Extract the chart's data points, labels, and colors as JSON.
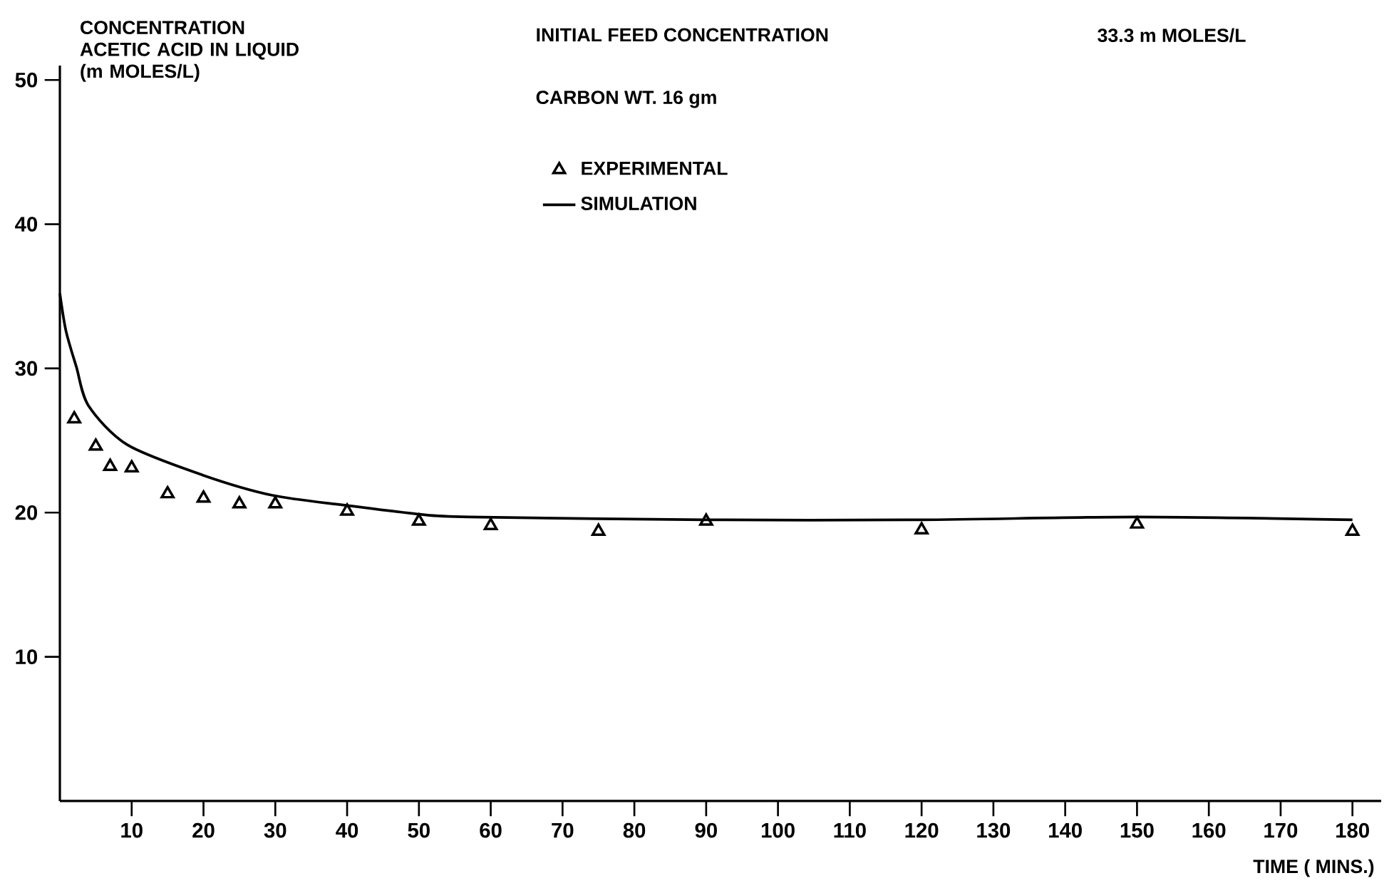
{
  "chart_data": {
    "type": "scatter",
    "xlabel": "TIME ( MINS.)",
    "ylabel": "CONCENTRATION ACETIC ACID IN LIQUID (m MOLES/L)",
    "annotations": [
      "INITIAL FEED CONCENTRATION",
      "33.3 m MOLES/L",
      "CARBON WT.  16 gm"
    ],
    "xlim": [
      0,
      184
    ],
    "ylim": [
      0,
      51
    ],
    "xticks": [
      10,
      20,
      30,
      40,
      50,
      60,
      70,
      80,
      90,
      100,
      110,
      120,
      130,
      140,
      150,
      160,
      170,
      180
    ],
    "yticks": [
      10,
      20,
      30,
      40,
      50
    ],
    "legend": "top",
    "series": [
      {
        "name": "EXPERIMENTAL",
        "marker": "triangle",
        "color": "#000000",
        "x": [
          2,
          5,
          7,
          10,
          15,
          20,
          25,
          30,
          40,
          50,
          60,
          75,
          90,
          120,
          150,
          180
        ],
        "values": [
          26.5,
          24.6,
          23.2,
          23.1,
          21.3,
          21.0,
          20.6,
          20.6,
          20.1,
          19.4,
          19.1,
          18.7,
          19.4,
          18.8,
          19.2,
          18.7
        ]
      },
      {
        "name": "SIMULATION",
        "type": "line",
        "marker": "none",
        "line_style": "solid",
        "color": "#000000",
        "x": [
          0,
          0.85,
          2.3,
          4,
          9.4,
          19.9,
          29.6,
          39.9,
          49.8,
          57,
          90,
          120,
          150,
          180
        ],
        "values": [
          35.2,
          32.6,
          30.1,
          27.4,
          24.7,
          22.6,
          21.2,
          20.5,
          19.9,
          19.7,
          19.5,
          19.5,
          19.7,
          19.5
        ]
      }
    ]
  }
}
